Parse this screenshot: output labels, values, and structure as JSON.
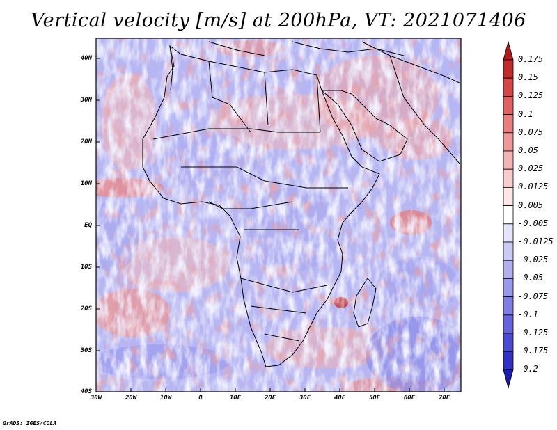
{
  "title": "Vertical velocity [m/s] at 200hPa, VT: 2021071406",
  "credit": "GrADS: IGES/COLA",
  "lat_labels": [
    "40N",
    "30N",
    "20N",
    "10N",
    "EQ",
    "10S",
    "20S",
    "30S",
    "40S"
  ],
  "lon_labels": [
    "30W",
    "20W",
    "10W",
    "0",
    "10E",
    "20E",
    "30E",
    "40E",
    "50E",
    "60E",
    "70E"
  ],
  "colorbar": {
    "levels": [
      "0.175",
      "0.15",
      "0.125",
      "0.1",
      "0.075",
      "0.05",
      "0.025",
      "0.0125",
      "0.005",
      "-0.005",
      "-0.0125",
      "-0.025",
      "-0.05",
      "-0.075",
      "-0.1",
      "-0.125",
      "-0.175",
      "-0.2"
    ],
    "colors": [
      "#b01a1a",
      "#c42c2c",
      "#d64646",
      "#e26060",
      "#ea7e7e",
      "#f09898",
      "#f4b4b4",
      "#f8cccc",
      "#fce6e6",
      "#ffffff",
      "#e4e4fb",
      "#cacaf6",
      "#b0b0f0",
      "#9898ec",
      "#7e7ee6",
      "#6464de",
      "#4a4ad4",
      "#3030c6",
      "#1a1ab4"
    ]
  },
  "colors": {
    "positive": "#e06868",
    "negative": "#7474e4",
    "neutral": "#ffffff",
    "coast": "#000000"
  }
}
